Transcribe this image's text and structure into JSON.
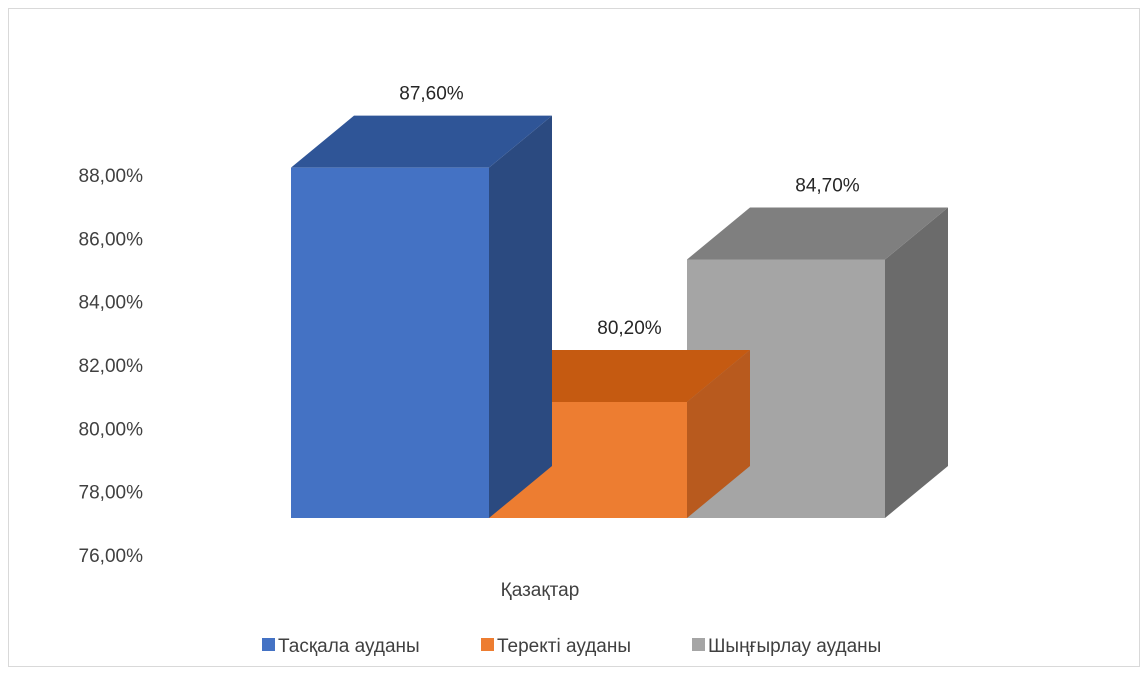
{
  "chart_data": {
    "type": "bar",
    "style": "3d-column",
    "categories": [
      "Қазақтар"
    ],
    "series": [
      {
        "name": "Тасқала ауданы",
        "values": [
          87.6
        ],
        "label": "87,60%",
        "color": "#4472C4",
        "top_color": "#2F5597",
        "side_color": "#2B4A80"
      },
      {
        "name": "Теректі ауданы",
        "values": [
          80.2
        ],
        "label": "80,20%",
        "color": "#ED7D31",
        "top_color": "#C55A11",
        "side_color": "#B85A1E"
      },
      {
        "name": "Шыңғырлау ауданы",
        "values": [
          84.7
        ],
        "label": "84,70%",
        "color": "#A5A5A5",
        "top_color": "#7F7F7F",
        "side_color": "#6B6B6B"
      }
    ],
    "y_ticks": [
      "88,00%",
      "86,00%",
      "84,00%",
      "82,00%",
      "80,00%",
      "78,00%",
      "76,00%"
    ],
    "y_tick_values": [
      88,
      86,
      84,
      82,
      80,
      78,
      76
    ],
    "ylim": [
      76,
      88
    ],
    "grid": false,
    "legend_position": "bottom",
    "title": "",
    "xlabel": "",
    "ylabel": ""
  }
}
